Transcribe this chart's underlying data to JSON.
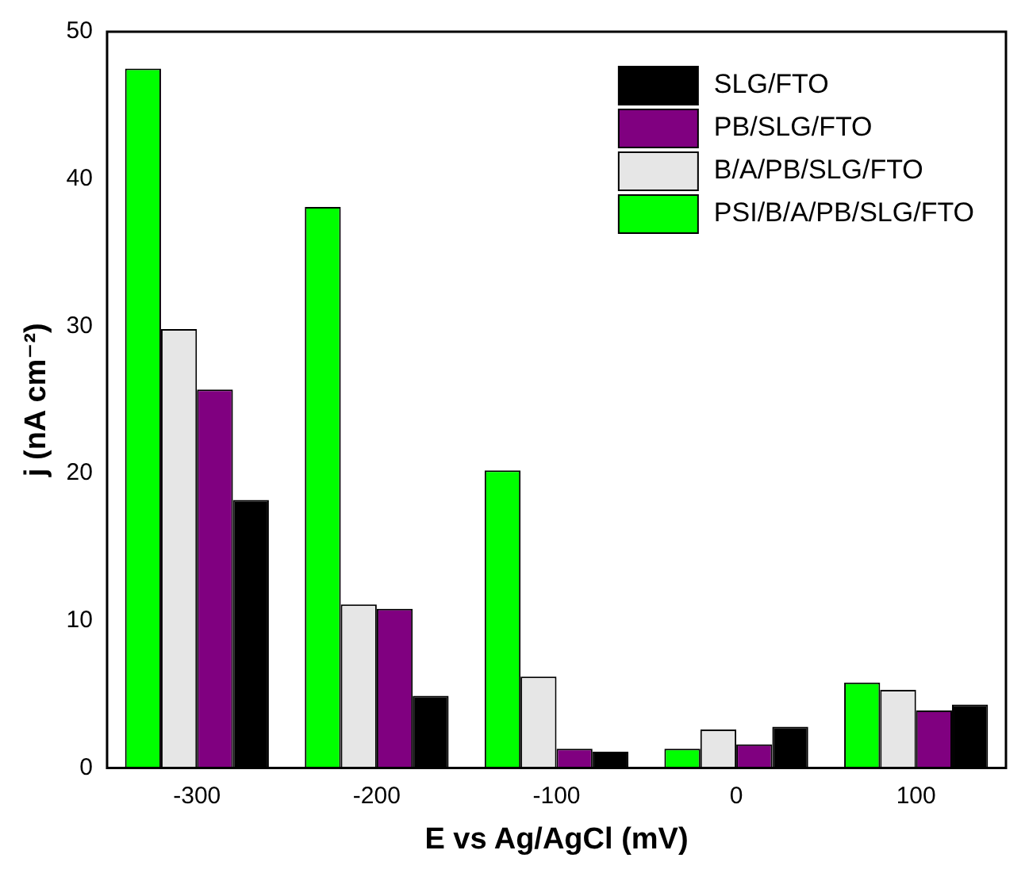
{
  "chart_data": {
    "type": "bar",
    "xlabel": "E vs Ag/AgCl (mV)",
    "ylabel": "j (nA cm⁻²)",
    "categories": [
      "-300",
      "-200",
      "-100",
      "0",
      "100"
    ],
    "series": [
      {
        "name": "PSI/B/A/PB/SLG/FTO",
        "color": "#00ff00",
        "values": [
          47.5,
          38.1,
          20.2,
          1.3,
          5.8
        ]
      },
      {
        "name": "B/A/PB/SLG/FTO",
        "color": "#e6e6e6",
        "values": [
          29.8,
          11.1,
          6.2,
          2.6,
          5.3
        ]
      },
      {
        "name": "PB/SLG/FTO",
        "color": "#800080",
        "values": [
          25.7,
          10.8,
          1.3,
          1.6,
          3.9
        ]
      },
      {
        "name": "SLG/FTO",
        "color": "#000000",
        "values": [
          18.2,
          4.9,
          1.1,
          2.8,
          4.3
        ]
      }
    ],
    "ylim": [
      0,
      50
    ],
    "yticks": [
      0,
      10,
      20,
      30,
      40,
      50
    ],
    "grid": false,
    "legend": "top right"
  }
}
